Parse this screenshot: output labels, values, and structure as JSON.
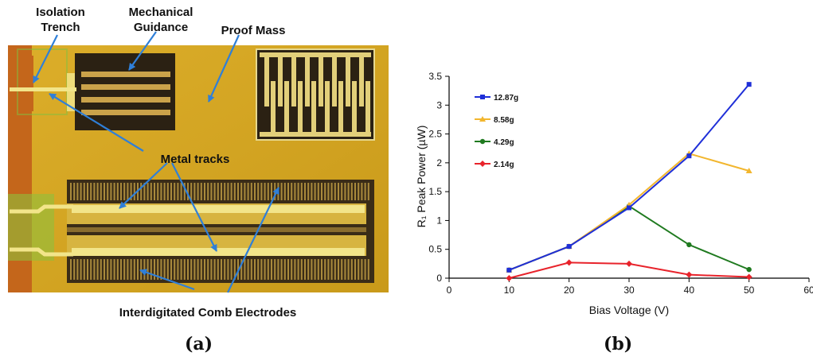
{
  "figure_a": {
    "caption": "(a)",
    "labels": {
      "isolation_trench": [
        "Isolation",
        "Trench"
      ],
      "mechanical_guidance": [
        "Mechanical",
        "Guidance"
      ],
      "proof_mass": "Proof Mass",
      "metal_tracks": "Metal tracks",
      "comb_electrodes": "Interdigitated Comb Electrodes"
    },
    "colors": {
      "substrate": "#d3a520",
      "trench": "#c86a1c",
      "dark": "#2b2113",
      "metal": "#f2e58a",
      "arrow": "#2f7fd8"
    }
  },
  "figure_b": {
    "caption": "(b)"
  },
  "chart_data": {
    "type": "line",
    "xlabel": "Bias Voltage (V)",
    "ylabel": "R₁ Peak Power (µW)",
    "xlim": [
      0,
      60
    ],
    "ylim": [
      0,
      3.5
    ],
    "xticks": [
      "0",
      "10",
      "20",
      "30",
      "40",
      "50",
      "60"
    ],
    "yticks": [
      "0",
      "0.5",
      "1",
      "1.5",
      "2",
      "2.5",
      "3",
      "3.5"
    ],
    "grid": false,
    "legend_position": "top-left",
    "x": [
      10,
      20,
      30,
      40,
      50
    ],
    "series": [
      {
        "name": "12.87g",
        "color": "#1f2fd8",
        "marker": "square",
        "values": [
          0.14,
          0.55,
          1.22,
          2.12,
          3.36
        ]
      },
      {
        "name": "8.58g",
        "color": "#f2b62e",
        "marker": "triangle",
        "values": [
          0.14,
          0.55,
          1.27,
          2.16,
          1.86
        ]
      },
      {
        "name": "4.29g",
        "color": "#1f7a1f",
        "marker": "circle",
        "values": [
          0.14,
          0.55,
          1.25,
          0.58,
          0.15
        ]
      },
      {
        "name": "2.14g",
        "color": "#e8232b",
        "marker": "diamond",
        "values": [
          0.0,
          0.27,
          0.25,
          0.06,
          0.02
        ]
      }
    ]
  }
}
